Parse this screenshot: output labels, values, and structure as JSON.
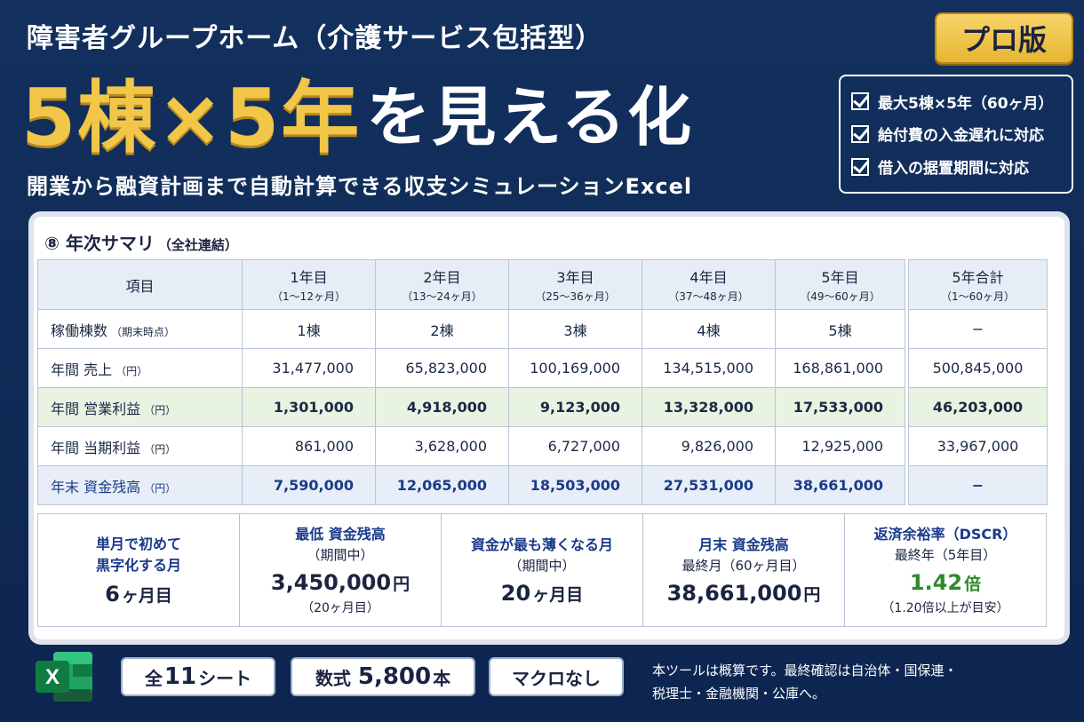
{
  "header": {
    "subtitle": "障害者グループホーム（介護サービス包括型）",
    "hero_gold_1": "5棟",
    "hero_gold_2": "×5年",
    "hero_white": "を見える化",
    "tagline": "開業から融資計画まで自動計算できる収支シミュレーションExcel",
    "badge": "プロ版",
    "features": [
      "最大5棟×5年（60ヶ月）",
      "給付費の入金遅れに対応",
      "借入の据置期間に対応"
    ]
  },
  "section": {
    "title": "⑧ 年次サマリ",
    "title_note": "（全社連結）"
  },
  "table": {
    "header_item": "項目",
    "years": [
      {
        "label": "1年目",
        "sub": "（1〜12ヶ月）"
      },
      {
        "label": "2年目",
        "sub": "（13〜24ヶ月）"
      },
      {
        "label": "3年目",
        "sub": "（25〜36ヶ月）"
      },
      {
        "label": "4年目",
        "sub": "（37〜48ヶ月）"
      },
      {
        "label": "5年目",
        "sub": "（49〜60ヶ月）"
      }
    ],
    "total": {
      "label": "5年合計",
      "sub": "（1〜60ヶ月）"
    },
    "rows": [
      {
        "label": "稼働棟数",
        "note": "（期末時点）",
        "values": [
          "1棟",
          "2棟",
          "3棟",
          "4棟",
          "5棟"
        ],
        "total": "−"
      },
      {
        "label": "年間 売上",
        "note": "（円）",
        "values": [
          "31,477,000",
          "65,823,000",
          "100,169,000",
          "134,515,000",
          "168,861,000"
        ],
        "total": "500,845,000"
      },
      {
        "label": "年間 営業利益",
        "note": "（円）",
        "values": [
          "1,301,000",
          "4,918,000",
          "9,123,000",
          "13,328,000",
          "17,533,000"
        ],
        "total": "46,203,000"
      },
      {
        "label": "年間 当期利益",
        "note": "（円）",
        "values": [
          "861,000",
          "3,628,000",
          "6,727,000",
          "9,826,000",
          "12,925,000"
        ],
        "total": "33,967,000"
      },
      {
        "label": "年末 資金残高",
        "note": "（円）",
        "values": [
          "7,590,000",
          "12,065,000",
          "18,503,000",
          "27,531,000",
          "38,661,000"
        ],
        "total": "−"
      }
    ]
  },
  "kpis": [
    {
      "title_1": "単月で初めて",
      "title_2": "黒字化する月",
      "value": "6",
      "unit": "ヶ月目",
      "note": ""
    },
    {
      "title_1": "最低 資金残高",
      "sub": "（期間中）",
      "value": "3,450,000",
      "unit": "円",
      "note": "（20ヶ月目）"
    },
    {
      "title_1": "資金が最も薄くなる月",
      "sub": "（期間中）",
      "value": "20",
      "unit": "ヶ月目",
      "note": ""
    },
    {
      "title_1": "月末 資金残高",
      "sub": "最終月（60ヶ月目）",
      "value": "38,661,000",
      "unit": "円",
      "note": ""
    },
    {
      "title_1": "返済余裕率（DSCR）",
      "sub": "最終年（5年目）",
      "value": "1.42",
      "unit": "倍",
      "note": "（1.20倍以上が目安）"
    }
  ],
  "footer": {
    "excel_letter": "X",
    "chip1_pre": "全",
    "chip1_num": "11",
    "chip1_post": "シート",
    "chip2_pre": "数式",
    "chip2_num": "5,800",
    "chip2_post": "本",
    "chip3": "マクロなし",
    "disclaimer_1": "本ツールは概算です。最終確認は自治体・国保連・",
    "disclaimer_2": "税理士・金融機関・公庫へ。"
  }
}
